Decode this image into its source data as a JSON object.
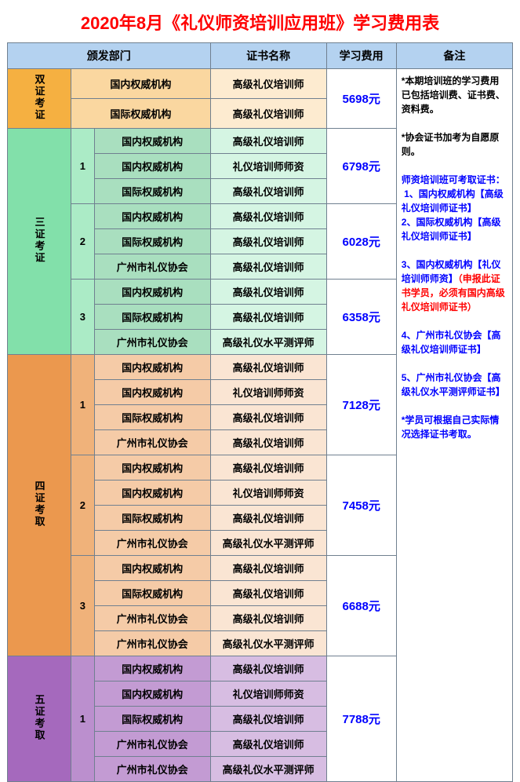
{
  "title": "2020年8月《礼仪师资培训应用班》学习费用表",
  "headers": {
    "dept": "颁发部门",
    "cert": "证书名称",
    "fee": "学习费用",
    "remark": "备注"
  },
  "colors": {
    "header": "#b4d2f0",
    "s2": {
      "cat": "#f5b041",
      "sub": "#f8c471",
      "dept": "#fad7a0",
      "cert": "#fdebd0"
    },
    "s3": {
      "cat": "#82e0aa",
      "sub": "#abebc6",
      "dept": "#a9dfbf",
      "cert": "#d5f5e3"
    },
    "s4": {
      "cat": "#eb984e",
      "sub": "#f0b27a",
      "dept": "#f5cba7",
      "cert": "#fae5d3"
    },
    "s5": {
      "cat": "#a569bd",
      "sub": "#bb8fce",
      "dept": "#c39bd3",
      "cert": "#d7bde2"
    }
  },
  "sections": [
    {
      "id": "s2",
      "cat": "双证考证",
      "groups": [
        {
          "num": "",
          "fee": "5698元",
          "rows": [
            {
              "dept": "国内权威机构",
              "cert": "高级礼仪培训师"
            },
            {
              "dept": "国际权威机构",
              "cert": "高级礼仪培训师"
            }
          ]
        }
      ]
    },
    {
      "id": "s3",
      "cat": "三证考证",
      "groups": [
        {
          "num": "1",
          "fee": "6798元",
          "rows": [
            {
              "dept": "国内权威机构",
              "cert": "高级礼仪培训师"
            },
            {
              "dept": "国内权威机构",
              "cert": "礼仪培训师师资"
            },
            {
              "dept": "国际权威机构",
              "cert": "高级礼仪培训师"
            }
          ]
        },
        {
          "num": "2",
          "fee": "6028元",
          "rows": [
            {
              "dept": "国内权威机构",
              "cert": "高级礼仪培训师"
            },
            {
              "dept": "国际权威机构",
              "cert": "高级礼仪培训师"
            },
            {
              "dept": "广州市礼仪协会",
              "cert": "高级礼仪培训师"
            }
          ]
        },
        {
          "num": "3",
          "fee": "6358元",
          "rows": [
            {
              "dept": "国内权威机构",
              "cert": "高级礼仪培训师"
            },
            {
              "dept": "国际权威机构",
              "cert": "高级礼仪培训师"
            },
            {
              "dept": "广州市礼仪协会",
              "cert": "高级礼仪水平测评师"
            }
          ]
        }
      ]
    },
    {
      "id": "s4",
      "cat": "四证考取",
      "groups": [
        {
          "num": "1",
          "fee": "7128元",
          "rows": [
            {
              "dept": "国内权威机构",
              "cert": "高级礼仪培训师"
            },
            {
              "dept": "国内权威机构",
              "cert": "礼仪培训师师资"
            },
            {
              "dept": "国际权威机构",
              "cert": "高级礼仪培训师"
            },
            {
              "dept": "广州市礼仪协会",
              "cert": "高级礼仪培训师"
            }
          ]
        },
        {
          "num": "2",
          "fee": "7458元",
          "rows": [
            {
              "dept": "国内权威机构",
              "cert": "高级礼仪培训师"
            },
            {
              "dept": "国内权威机构",
              "cert": "礼仪培训师师资"
            },
            {
              "dept": "国际权威机构",
              "cert": "高级礼仪培训师"
            },
            {
              "dept": "广州市礼仪协会",
              "cert": "高级礼仪水平测评师"
            }
          ]
        },
        {
          "num": "3",
          "fee": "6688元",
          "rows": [
            {
              "dept": "国内权威机构",
              "cert": "高级礼仪培训师"
            },
            {
              "dept": "国际权威机构",
              "cert": "高级礼仪培训师"
            },
            {
              "dept": "广州市礼仪协会",
              "cert": "高级礼仪培训师"
            },
            {
              "dept": "广州市礼仪协会",
              "cert": "高级礼仪水平测评师"
            }
          ]
        }
      ]
    },
    {
      "id": "s5",
      "cat": "五证考取",
      "groups": [
        {
          "num": "1",
          "fee": "7788元",
          "rows": [
            {
              "dept": "国内权威机构",
              "cert": "高级礼仪培训师"
            },
            {
              "dept": "国内权威机构",
              "cert": "礼仪培训师师资"
            },
            {
              "dept": "国际权威机构",
              "cert": "高级礼仪培训师"
            },
            {
              "dept": "广州市礼仪协会",
              "cert": "高级礼仪培训师"
            },
            {
              "dept": "广州市礼仪协会",
              "cert": "高级礼仪水平测评师"
            }
          ]
        }
      ]
    }
  ],
  "remarks": [
    {
      "cls": "blk",
      "t": "*本期培训班的学习费用已包括培训费、证书费、资料费。"
    },
    {
      "cls": "blk",
      "t": ""
    },
    {
      "cls": "blk",
      "t": "*协会证书加考为自愿原则。"
    },
    {
      "cls": "blk",
      "t": ""
    },
    {
      "cls": "blu",
      "t": "师资培训班可考取证书："
    },
    {
      "cls": "blu",
      "t": "&nbsp;1、国内权威机构【高级礼仪培训师证书】"
    },
    {
      "cls": "blu",
      "t": "2、国际权威机构【高级礼仪培训师证书】"
    },
    {
      "cls": "blu",
      "t": ""
    },
    {
      "cls": "blu",
      "t": "3、国内权威机构【礼仪培训师师资】<span class='red'>（申报此证书学员，必须有国内高级礼仪培训师证书）</span>"
    },
    {
      "cls": "blu",
      "t": ""
    },
    {
      "cls": "blu",
      "t": "4、广州市礼仪协会【高级礼仪培训师证书】"
    },
    {
      "cls": "blu",
      "t": ""
    },
    {
      "cls": "blu",
      "t": "5、广州市礼仪协会【高级礼仪水平测评师证书】"
    },
    {
      "cls": "blu",
      "t": ""
    },
    {
      "cls": "blu",
      "t": "*学员可根据自己实际情况选择证书考取。"
    }
  ]
}
